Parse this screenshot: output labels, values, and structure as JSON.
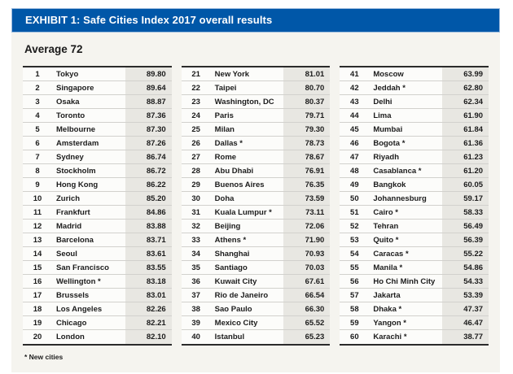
{
  "header": {
    "title": "EXHIBIT 1: Safe Cities Index 2017 overall results"
  },
  "average_label": "Average 72",
  "footnote": "* New cities",
  "colors": {
    "title_bar_bg": "#0057a8",
    "title_text": "#ffffff",
    "panel_bg": "#f5f4ef",
    "score_cell_bg": "#e8e7e2",
    "table_border": "#2b2b2b"
  },
  "tables": [
    [
      {
        "rank": "1",
        "city": "Tokyo",
        "score": "89.80"
      },
      {
        "rank": "2",
        "city": "Singapore",
        "score": "89.64"
      },
      {
        "rank": "3",
        "city": "Osaka",
        "score": "88.87"
      },
      {
        "rank": "4",
        "city": "Toronto",
        "score": "87.36"
      },
      {
        "rank": "5",
        "city": "Melbourne",
        "score": "87.30"
      },
      {
        "rank": "6",
        "city": "Amsterdam",
        "score": "87.26"
      },
      {
        "rank": "7",
        "city": "Sydney",
        "score": "86.74"
      },
      {
        "rank": "8",
        "city": "Stockholm",
        "score": "86.72"
      },
      {
        "rank": "9",
        "city": "Hong Kong",
        "score": "86.22"
      },
      {
        "rank": "10",
        "city": "Zurich",
        "score": "85.20"
      },
      {
        "rank": "11",
        "city": "Frankfurt",
        "score": "84.86"
      },
      {
        "rank": "12",
        "city": "Madrid",
        "score": "83.88"
      },
      {
        "rank": "13",
        "city": "Barcelona",
        "score": "83.71"
      },
      {
        "rank": "14",
        "city": "Seoul",
        "score": "83.61"
      },
      {
        "rank": "15",
        "city": "San Francisco",
        "score": "83.55"
      },
      {
        "rank": "16",
        "city": "Wellington *",
        "score": "83.18"
      },
      {
        "rank": "17",
        "city": "Brussels",
        "score": "83.01"
      },
      {
        "rank": "18",
        "city": "Los Angeles",
        "score": "82.26"
      },
      {
        "rank": "19",
        "city": "Chicago",
        "score": "82.21"
      },
      {
        "rank": "20",
        "city": "London",
        "score": "82.10"
      }
    ],
    [
      {
        "rank": "21",
        "city": "New York",
        "score": "81.01"
      },
      {
        "rank": "22",
        "city": "Taipei",
        "score": "80.70"
      },
      {
        "rank": "23",
        "city": "Washington, DC",
        "score": "80.37"
      },
      {
        "rank": "24",
        "city": "Paris",
        "score": "79.71"
      },
      {
        "rank": "25",
        "city": "Milan",
        "score": "79.30"
      },
      {
        "rank": "26",
        "city": "Dallas *",
        "score": "78.73"
      },
      {
        "rank": "27",
        "city": "Rome",
        "score": "78.67"
      },
      {
        "rank": "28",
        "city": "Abu Dhabi",
        "score": "76.91"
      },
      {
        "rank": "29",
        "city": "Buenos Aires",
        "score": "76.35"
      },
      {
        "rank": "30",
        "city": "Doha",
        "score": "73.59"
      },
      {
        "rank": "31",
        "city": "Kuala Lumpur *",
        "score": "73.11"
      },
      {
        "rank": "32",
        "city": "Beijing",
        "score": "72.06"
      },
      {
        "rank": "33",
        "city": "Athens *",
        "score": "71.90"
      },
      {
        "rank": "34",
        "city": "Shanghai",
        "score": "70.93"
      },
      {
        "rank": "35",
        "city": "Santiago",
        "score": "70.03"
      },
      {
        "rank": "36",
        "city": "Kuwait City",
        "score": "67.61"
      },
      {
        "rank": "37",
        "city": "Rio de Janeiro",
        "score": "66.54"
      },
      {
        "rank": "38",
        "city": "Sao Paulo",
        "score": "66.30"
      },
      {
        "rank": "39",
        "city": "Mexico City",
        "score": "65.52"
      },
      {
        "rank": "40",
        "city": "Istanbul",
        "score": "65.23"
      }
    ],
    [
      {
        "rank": "41",
        "city": "Moscow",
        "score": "63.99"
      },
      {
        "rank": "42",
        "city": "Jeddah *",
        "score": "62.80"
      },
      {
        "rank": "43",
        "city": "Delhi",
        "score": "62.34"
      },
      {
        "rank": "44",
        "city": "Lima",
        "score": "61.90"
      },
      {
        "rank": "45",
        "city": "Mumbai",
        "score": "61.84"
      },
      {
        "rank": "46",
        "city": "Bogota *",
        "score": "61.36"
      },
      {
        "rank": "47",
        "city": "Riyadh",
        "score": "61.23"
      },
      {
        "rank": "48",
        "city": "Casablanca *",
        "score": "61.20"
      },
      {
        "rank": "49",
        "city": "Bangkok",
        "score": "60.05"
      },
      {
        "rank": "50",
        "city": "Johannesburg",
        "score": "59.17"
      },
      {
        "rank": "51",
        "city": "Cairo *",
        "score": "58.33"
      },
      {
        "rank": "52",
        "city": "Tehran",
        "score": "56.49"
      },
      {
        "rank": "53",
        "city": "Quito *",
        "score": "56.39"
      },
      {
        "rank": "54",
        "city": "Caracas *",
        "score": "55.22"
      },
      {
        "rank": "55",
        "city": "Manila *",
        "score": "54.86"
      },
      {
        "rank": "56",
        "city": "Ho Chi Minh City",
        "score": "54.33"
      },
      {
        "rank": "57",
        "city": "Jakarta",
        "score": "53.39"
      },
      {
        "rank": "58",
        "city": "Dhaka *",
        "score": "47.37"
      },
      {
        "rank": "59",
        "city": "Yangon *",
        "score": "46.47"
      },
      {
        "rank": "60",
        "city": "Karachi *",
        "score": "38.77"
      }
    ]
  ]
}
